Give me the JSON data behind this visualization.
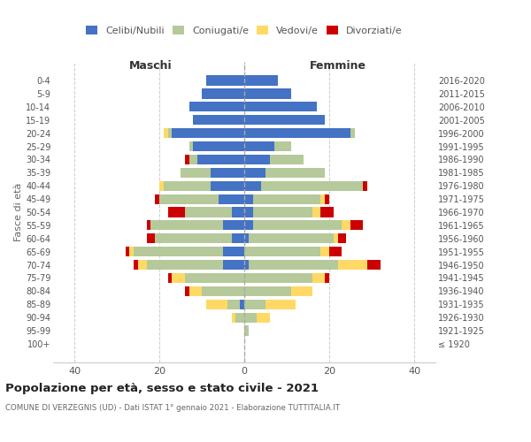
{
  "age_groups": [
    "100+",
    "95-99",
    "90-94",
    "85-89",
    "80-84",
    "75-79",
    "70-74",
    "65-69",
    "60-64",
    "55-59",
    "50-54",
    "45-49",
    "40-44",
    "35-39",
    "30-34",
    "25-29",
    "20-24",
    "15-19",
    "10-14",
    "5-9",
    "0-4"
  ],
  "birth_years": [
    "≤ 1920",
    "1921-1925",
    "1926-1930",
    "1931-1935",
    "1936-1940",
    "1941-1945",
    "1946-1950",
    "1951-1955",
    "1956-1960",
    "1961-1965",
    "1966-1970",
    "1971-1975",
    "1976-1980",
    "1981-1985",
    "1986-1990",
    "1991-1995",
    "1996-2000",
    "2001-2005",
    "2006-2010",
    "2011-2015",
    "2016-2020"
  ],
  "maschi": {
    "celibi": [
      0,
      0,
      0,
      1,
      0,
      0,
      5,
      5,
      3,
      5,
      3,
      6,
      8,
      8,
      11,
      12,
      17,
      12,
      13,
      10,
      9
    ],
    "coniugati": [
      0,
      0,
      2,
      3,
      10,
      14,
      18,
      21,
      18,
      17,
      11,
      14,
      11,
      7,
      2,
      1,
      1,
      0,
      0,
      0,
      0
    ],
    "vedovi": [
      0,
      0,
      1,
      5,
      3,
      3,
      2,
      1,
      0,
      0,
      0,
      0,
      1,
      0,
      0,
      0,
      1,
      0,
      0,
      0,
      0
    ],
    "divorziati": [
      0,
      0,
      0,
      0,
      1,
      1,
      1,
      1,
      2,
      1,
      4,
      1,
      0,
      0,
      1,
      0,
      0,
      0,
      0,
      0,
      0
    ]
  },
  "femmine": {
    "nubili": [
      0,
      0,
      0,
      0,
      0,
      0,
      1,
      0,
      1,
      2,
      2,
      2,
      4,
      5,
      6,
      7,
      25,
      19,
      17,
      11,
      8
    ],
    "coniugate": [
      0,
      1,
      3,
      5,
      11,
      16,
      21,
      18,
      20,
      21,
      14,
      16,
      24,
      14,
      8,
      4,
      1,
      0,
      0,
      0,
      0
    ],
    "vedove": [
      0,
      0,
      3,
      7,
      5,
      3,
      7,
      2,
      1,
      2,
      2,
      1,
      0,
      0,
      0,
      0,
      0,
      0,
      0,
      0,
      0
    ],
    "divorziate": [
      0,
      0,
      0,
      0,
      0,
      1,
      3,
      3,
      2,
      3,
      3,
      1,
      1,
      0,
      0,
      0,
      0,
      0,
      0,
      0,
      0
    ]
  },
  "colors": {
    "celibi": "#4472c4",
    "coniugati": "#b5c99a",
    "vedovi": "#ffd966",
    "divorziati": "#cc0000"
  },
  "xlim": 45,
  "title": "Popolazione per età, sesso e stato civile - 2021",
  "subtitle": "COMUNE DI VERZEGNIS (UD) - Dati ISTAT 1° gennaio 2021 - Elaborazione TUTTITALIA.IT",
  "ylabel_left": "Fasce di età",
  "xlabel_left": "Maschi",
  "xlabel_right": "Femmine",
  "background_color": "#ffffff",
  "grid_color": "#cccccc"
}
